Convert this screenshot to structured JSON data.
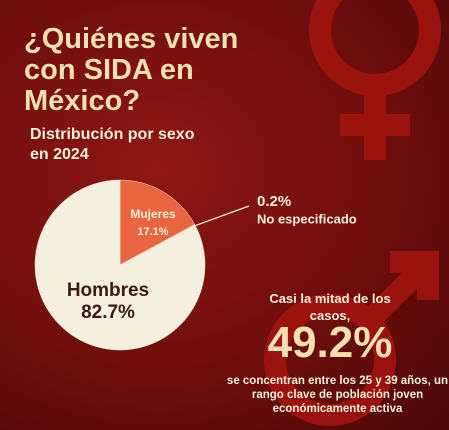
{
  "chart_data": {
    "type": "pie",
    "title": "¿Quiénes viven con SIDA en México?",
    "subtitle": "Distribución por sexo en 2024",
    "categories": [
      "Mujeres",
      "No especificado",
      "Hombres"
    ],
    "values": [
      17.1,
      0.2,
      82.7
    ],
    "value_labels": [
      "17.1%",
      "0.2%",
      "82.7%"
    ],
    "colors": [
      "#e8653f",
      "#f3d9a8",
      "#f4efde"
    ],
    "highlight": {
      "intro": "Casi la mitad de los casos,",
      "value": 49.2,
      "label": "49.2%",
      "text": "se concentran entre los 25 y 39 años, un rango clave de población joven económicamente activa"
    }
  }
}
